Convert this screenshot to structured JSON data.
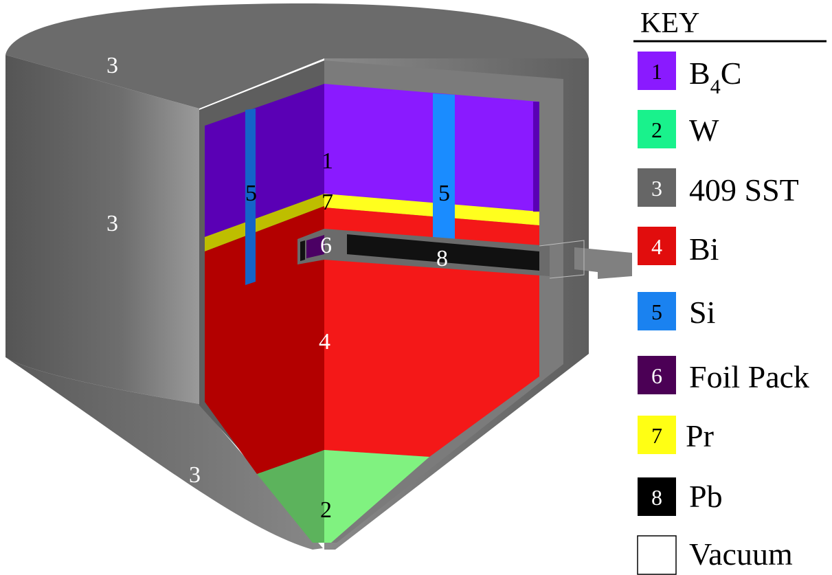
{
  "colors": {
    "steel": "#6b6b6b",
    "steel_dark": "#555555",
    "b4c": "#8a1aff",
    "b4c_dark": "#5a00b5",
    "w": "#80f280",
    "w_dark": "#5cb35c",
    "bi": "#f41818",
    "bi_dark": "#b30000",
    "si": "#1a8cff",
    "si_dark": "#1464c8",
    "foil": "#4b0064",
    "pr": "#ffff1e",
    "pr_dark": "#bebe00",
    "pb": "#111111",
    "vacuum": "#ffffff"
  },
  "labels": {
    "top_3": "3",
    "left_3": "3",
    "bottom_3": "3",
    "b4c_1": "1",
    "pr_7": "7",
    "si_left_5": "5",
    "si_right_5": "5",
    "foil_6": "6",
    "pb_8": "8",
    "bi_4": "4",
    "w_2": "2"
  },
  "key": {
    "title": "KEY",
    "items": [
      {
        "num": "1",
        "label": "B",
        "sub": "4",
        "label_after": "C",
        "color": "#8a1aff",
        "num_color": "#000000"
      },
      {
        "num": "2",
        "label": "W",
        "color": "#19f28c",
        "num_color": "#000000"
      },
      {
        "num": "3",
        "label": "409 SST",
        "color": "#666666",
        "num_color": "#ffffff"
      },
      {
        "num": "4",
        "label": "Bi",
        "color": "#e10d0d",
        "num_color": "#ffffff"
      },
      {
        "num": "5",
        "label": "Si",
        "color": "#1a82f0",
        "num_color": "#000000"
      },
      {
        "num": "6",
        "label": "Foil Pack",
        "color": "#4b0055",
        "num_color": "#ffffff"
      },
      {
        "num": "7",
        "label": "Pr",
        "color": "#ffff14",
        "num_color": "#000000"
      },
      {
        "num": "8",
        "label": "Pb",
        "color": "#000000",
        "num_color": "#ffffff"
      },
      {
        "num": "",
        "label": "Vacuum",
        "color": "#ffffff",
        "num_color": "#000000"
      }
    ]
  }
}
